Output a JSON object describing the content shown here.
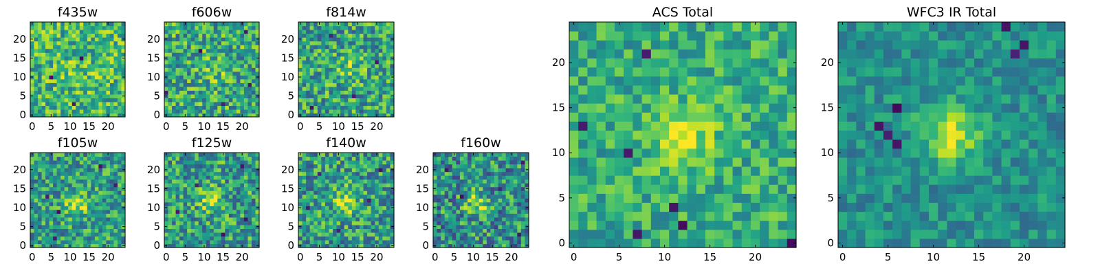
{
  "chart_data": [
    {
      "type": "heatmap",
      "title": "f435w",
      "colormap": "viridis",
      "grid_size": 25,
      "xticks": [
        0,
        5,
        10,
        15,
        20
      ],
      "yticks": [
        0,
        5,
        10,
        15,
        20
      ],
      "xlim": [
        -0.5,
        24.5
      ],
      "ylim": [
        -0.5,
        24.5
      ],
      "image": {
        "base": 0.66,
        "noise": 0.28,
        "seed": 11,
        "blob": {
          "center": [
            12,
            12
          ],
          "amp": 0.08,
          "sigma": 3
        },
        "dark_cells": [
          [
            5,
            10
          ],
          [
            11,
            3
          ],
          [
            13,
            15
          ]
        ]
      }
    },
    {
      "type": "heatmap",
      "title": "f606w",
      "colormap": "viridis",
      "grid_size": 25,
      "xticks": [
        0,
        5,
        10,
        15,
        20
      ],
      "yticks": [
        0,
        5,
        10,
        15,
        20
      ],
      "xlim": [
        -0.5,
        24.5
      ],
      "ylim": [
        -0.5,
        24.5
      ],
      "image": {
        "base": 0.6,
        "noise": 0.3,
        "seed": 23,
        "blob": {
          "center": [
            12,
            12
          ],
          "amp": 0.15,
          "sigma": 2.5
        },
        "dark_cells": [
          [
            0,
            6
          ],
          [
            21,
            22
          ],
          [
            22,
            8
          ],
          [
            15,
            3
          ],
          [
            9,
            17
          ]
        ]
      }
    },
    {
      "type": "heatmap",
      "title": "f814w",
      "colormap": "viridis",
      "grid_size": 25,
      "xticks": [
        0,
        5,
        10,
        15,
        20
      ],
      "yticks": [
        0,
        5,
        10,
        15,
        20
      ],
      "xlim": [
        -0.5,
        24.5
      ],
      "ylim": [
        -0.5,
        24.5
      ],
      "image": {
        "base": 0.58,
        "noise": 0.3,
        "seed": 37,
        "blob": {
          "center": [
            13,
            12
          ],
          "amp": 0.18,
          "sigma": 2.5
        },
        "dark_cells": [
          [
            3,
            2
          ],
          [
            8,
            21
          ],
          [
            20,
            14
          ],
          [
            14,
            5
          ]
        ]
      }
    },
    {
      "type": "heatmap",
      "title": "f105w",
      "colormap": "viridis",
      "grid_size": 25,
      "xticks": [
        0,
        5,
        10,
        15,
        20
      ],
      "yticks": [
        0,
        5,
        10,
        15,
        20
      ],
      "xlim": [
        -0.5,
        24.5
      ],
      "ylim": [
        -0.5,
        24.5
      ],
      "image": {
        "base": 0.55,
        "noise": 0.28,
        "seed": 41,
        "blob": {
          "center": [
            12,
            11
          ],
          "amp": 0.35,
          "sigma": 2.2
        },
        "dark_cells": [
          [
            4,
            13
          ],
          [
            7,
            9
          ],
          [
            18,
            21
          ],
          [
            22,
            16
          ],
          [
            6,
            2
          ]
        ]
      }
    },
    {
      "type": "heatmap",
      "title": "f125w",
      "colormap": "viridis",
      "grid_size": 25,
      "xticks": [
        0,
        5,
        10,
        15,
        20
      ],
      "yticks": [
        0,
        5,
        10,
        15,
        20
      ],
      "xlim": [
        -0.5,
        24.5
      ],
      "ylim": [
        -0.5,
        24.5
      ],
      "image": {
        "base": 0.55,
        "noise": 0.3,
        "seed": 53,
        "blob": {
          "center": [
            12,
            12
          ],
          "amp": 0.35,
          "sigma": 2.2
        },
        "dark_cells": [
          [
            8,
            16
          ],
          [
            20,
            21
          ],
          [
            21,
            7
          ],
          [
            3,
            9
          ],
          [
            15,
            3
          ]
        ]
      }
    },
    {
      "type": "heatmap",
      "title": "f140w",
      "colormap": "viridis",
      "grid_size": 25,
      "xticks": [
        0,
        5,
        10,
        15,
        20
      ],
      "yticks": [
        0,
        5,
        10,
        15,
        20
      ],
      "xlim": [
        -0.5,
        24.5
      ],
      "ylim": [
        -0.5,
        24.5
      ],
      "image": {
        "base": 0.55,
        "noise": 0.3,
        "seed": 67,
        "blob": {
          "center": [
            12,
            12
          ],
          "amp": 0.3,
          "sigma": 2.5
        },
        "dark_cells": [
          [
            5,
            19
          ],
          [
            18,
            12
          ],
          [
            10,
            4
          ],
          [
            2,
            10
          ],
          [
            21,
            20
          ]
        ]
      }
    },
    {
      "type": "heatmap",
      "title": "f160w",
      "colormap": "viridis",
      "grid_size": 25,
      "xticks": [
        0,
        5,
        10,
        15,
        20
      ],
      "yticks": [
        0,
        5,
        10,
        15,
        20
      ],
      "xlim": [
        -0.5,
        24.5
      ],
      "ylim": [
        -0.5,
        24.5
      ],
      "image": {
        "base": 0.5,
        "noise": 0.32,
        "seed": 79,
        "blob": {
          "center": [
            11,
            11
          ],
          "amp": 0.35,
          "sigma": 2.2
        },
        "dark_cells": [
          [
            3,
            20
          ],
          [
            23,
            22
          ],
          [
            17,
            15
          ],
          [
            7,
            13
          ],
          [
            22,
            3
          ]
        ]
      }
    },
    {
      "type": "heatmap",
      "title": "ACS Total",
      "colormap": "viridis",
      "grid_size": 25,
      "xticks": [
        0,
        5,
        10,
        15,
        20
      ],
      "yticks": [
        0,
        5,
        10,
        15,
        20
      ],
      "xlim": [
        -0.5,
        24.5
      ],
      "ylim": [
        -0.5,
        24.5
      ],
      "image": {
        "base": 0.62,
        "noise": 0.2,
        "seed": 97,
        "blob": {
          "center": [
            12,
            12
          ],
          "amp": 0.3,
          "sigma": 2.5
        },
        "dark_cells": [
          [
            8,
            21
          ],
          [
            1,
            13
          ],
          [
            6,
            10
          ],
          [
            11,
            4
          ],
          [
            24,
            0
          ],
          [
            7,
            1
          ],
          [
            12,
            2
          ]
        ]
      }
    },
    {
      "type": "heatmap",
      "title": "WFC3 IR Total",
      "colormap": "viridis",
      "grid_size": 25,
      "xticks": [
        0,
        5,
        10,
        15,
        20
      ],
      "yticks": [
        0,
        5,
        10,
        15,
        20
      ],
      "xlim": [
        -0.5,
        24.5
      ],
      "ylim": [
        -0.5,
        24.5
      ],
      "image": {
        "base": 0.5,
        "noise": 0.16,
        "seed": 113,
        "blob": {
          "center": [
            12,
            12
          ],
          "amp": 0.42,
          "sigma": 2.2
        },
        "dark_cells": [
          [
            4,
            13
          ],
          [
            5,
            12
          ],
          [
            6,
            11
          ],
          [
            18,
            24
          ],
          [
            20,
            22
          ],
          [
            19,
            21
          ],
          [
            6,
            15
          ]
        ]
      }
    }
  ]
}
